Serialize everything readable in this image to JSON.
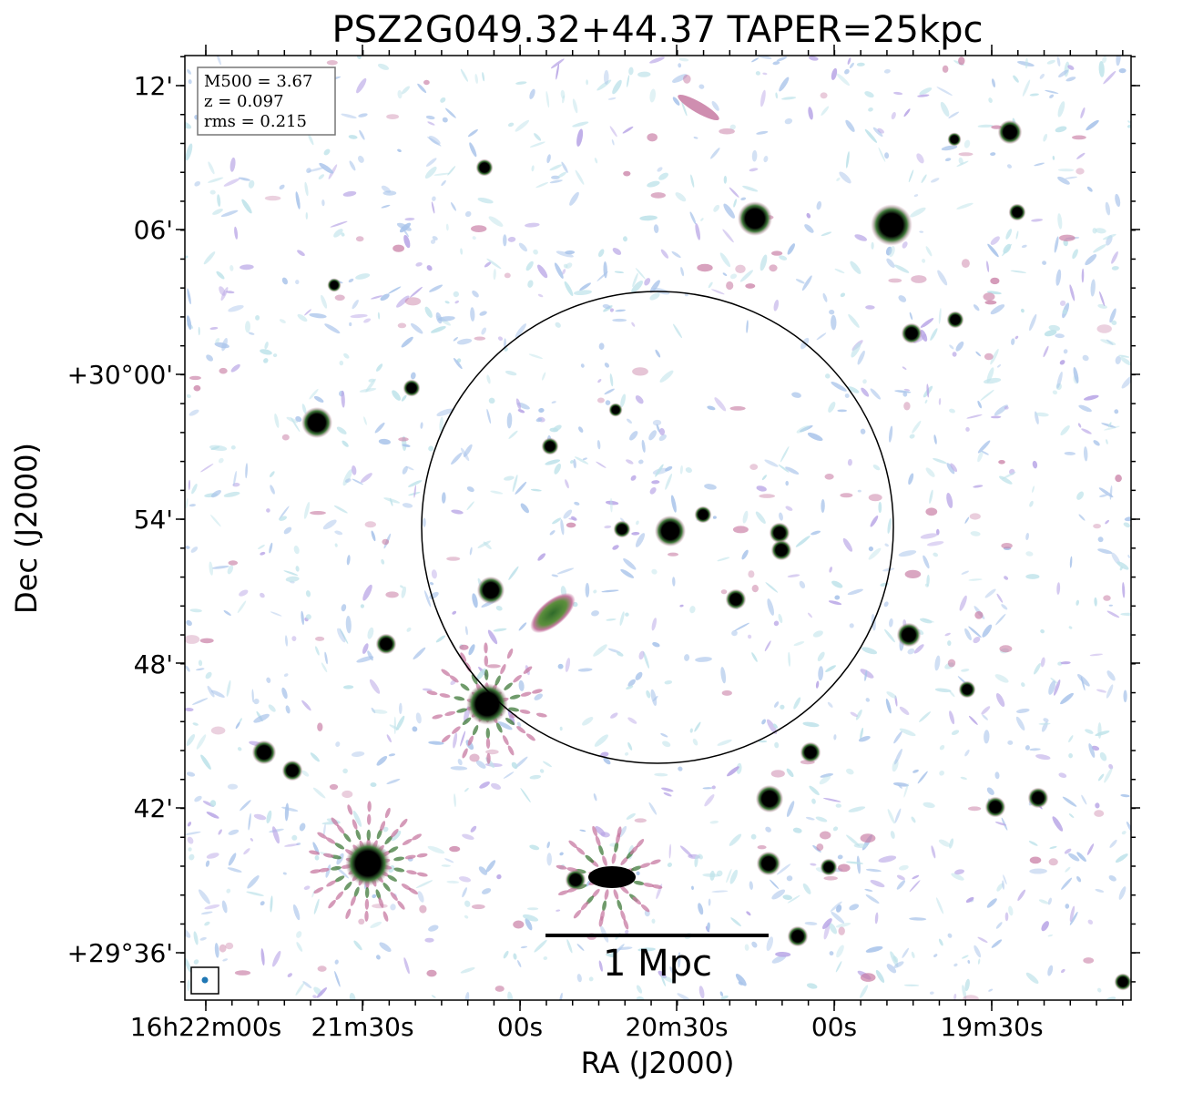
{
  "title": "PSZ2G049.32+44.37 TAPER=25kpc",
  "info_box": {
    "lines": [
      "M500 = 3.67",
      "z = 0.097",
      "rms = 0.215"
    ]
  },
  "axes": {
    "xlabel": "RA (J2000)",
    "ylabel": "Dec (J2000)",
    "x_ticks": [
      "16h22m00s",
      "21m30s",
      "00s",
      "20m30s",
      "00s",
      "19m30s"
    ],
    "y_ticks": [
      "12'",
      "06'",
      "+30°00'",
      "54'",
      "48'",
      "42'",
      "+29°36'"
    ]
  },
  "scale_bar": {
    "label": "1 Mpc"
  },
  "colors": {
    "noise_blue": "#a9c4ea",
    "noise_cyan": "#bfe3ea",
    "noise_purple": "#b9a6e6",
    "emission_pink": "#c77aa2",
    "emission_green": "#3f7a3a",
    "source_core": "#000000",
    "beam": "#1f77b4"
  },
  "overlays": [
    "r500-circle",
    "beam-marker",
    "scale-bar"
  ]
}
